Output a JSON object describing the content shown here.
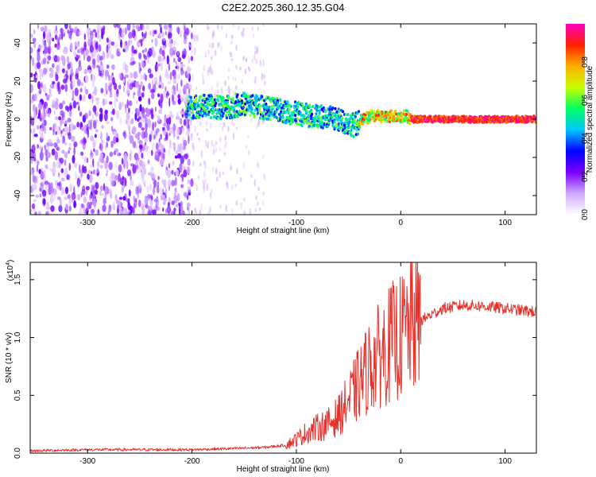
{
  "title": "C2E2.2025.360.12.35.G04",
  "colors": {
    "snr_line": "#e8302a",
    "plot_bg": "#ffffff",
    "axis": "#000000"
  },
  "chart_data": [
    {
      "type": "heatmap",
      "name": "spectrogram",
      "xlabel": "Height of straight line (km)",
      "ylabel": "Frequency (Hz)",
      "xlim": [
        -355,
        130
      ],
      "ylim": [
        -50,
        50
      ],
      "x_ticks": [
        -300,
        -200,
        -100,
        0,
        100
      ],
      "x_tick_labels": [
        "-300",
        "-200",
        "-100",
        "0",
        "100"
      ],
      "y_ticks": [
        40,
        20,
        0,
        -20,
        -40
      ],
      "y_tick_labels": [
        "40",
        "20",
        "0",
        "-20",
        "-40"
      ],
      "signal_track": {
        "x": [
          -205,
          -190,
          -170,
          -150,
          -140,
          -120,
          -100,
          -90,
          -70,
          -55,
          -45,
          -35,
          -25,
          -15,
          -8,
          0,
          5,
          10,
          30,
          60,
          100,
          130
        ],
        "y": [
          6,
          7,
          6,
          8,
          7,
          5,
          3,
          2,
          1,
          -1,
          -3,
          0,
          2,
          1,
          2,
          1,
          2,
          0,
          0,
          0,
          0,
          0
        ]
      },
      "colorbar": {
        "label": "Normalized spectral amplitude",
        "range": [
          0.0,
          1.0
        ],
        "ticks": [
          0.0,
          0.2,
          0.4,
          0.6,
          0.8
        ],
        "tick_labels": [
          "0.0",
          "0.2",
          "0.4",
          "0.6",
          "0.8"
        ],
        "colormap": [
          "#ffffff",
          "#d0a8ff",
          "#7a00ff",
          "#0000ff",
          "#00c8ff",
          "#00ff60",
          "#c8ff00",
          "#ffb000",
          "#ff2000",
          "#ff00c0"
        ]
      }
    },
    {
      "type": "line",
      "name": "snr",
      "xlabel": "Height of straight line (km)",
      "ylabel": "SNR (10 * v/v)",
      "multiplier": "(x10",
      "multiplier_exp": "4",
      "multiplier_close": ")",
      "xlim": [
        -355,
        130
      ],
      "ylim": [
        0,
        1.65
      ],
      "x_ticks": [
        -300,
        -200,
        -100,
        0,
        100
      ],
      "x_tick_labels": [
        "-300",
        "-200",
        "-100",
        "0",
        "100"
      ],
      "y_ticks": [
        0.0,
        0.5,
        1.0,
        1.5
      ],
      "y_tick_labels": [
        "0.0",
        "0.5",
        "1.0",
        "1.5"
      ],
      "series": [
        {
          "name": "SNR",
          "x": [
            -355,
            -300,
            -250,
            -200,
            -160,
            -130,
            -110,
            -100,
            -90,
            -80,
            -70,
            -60,
            -50,
            -40,
            -30,
            -20,
            -10,
            0,
            10,
            20,
            30,
            40,
            60,
            80,
            100,
            130
          ],
          "y": [
            0.02,
            0.03,
            0.03,
            0.03,
            0.04,
            0.05,
            0.07,
            0.12,
            0.18,
            0.22,
            0.25,
            0.32,
            0.45,
            0.6,
            0.75,
            0.85,
            0.95,
            1.0,
            1.1,
            1.15,
            1.2,
            1.25,
            1.28,
            1.27,
            1.25,
            1.22
          ]
        }
      ]
    }
  ]
}
